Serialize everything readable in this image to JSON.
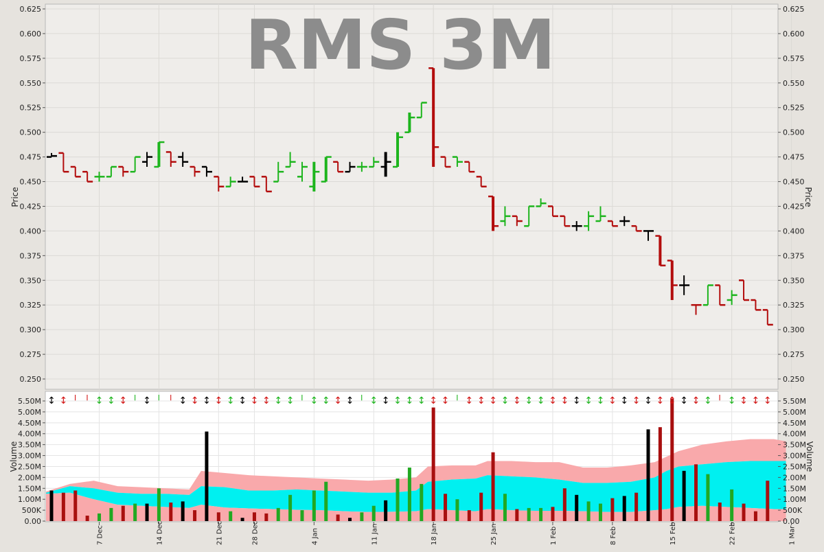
{
  "chart_data": [
    {
      "type": "ohlc",
      "title": "RMS 3M",
      "ylabel": "Price",
      "ylim": [
        0.24,
        0.627
      ],
      "yticks": [
        "0.250",
        "0.275",
        "0.300",
        "0.325",
        "0.350",
        "0.375",
        "0.400",
        "0.425",
        "0.450",
        "0.475",
        "0.500",
        "0.525",
        "0.550",
        "0.575",
        "0.600",
        "0.625"
      ],
      "grid": true,
      "colors": {
        "up": "#1db51d",
        "down": "#b30d0d",
        "flat": "#000000"
      },
      "bars": [
        {
          "o": 0.475,
          "h": 0.479,
          "l": 0.475,
          "c": 0.476,
          "dir": "flat"
        },
        {
          "o": 0.479,
          "h": 0.479,
          "l": 0.46,
          "c": 0.46,
          "dir": "down"
        },
        {
          "o": 0.465,
          "h": 0.465,
          "l": 0.455,
          "c": 0.455,
          "dir": "down"
        },
        {
          "o": 0.46,
          "h": 0.46,
          "l": 0.45,
          "c": 0.45,
          "dir": "down"
        },
        {
          "o": 0.455,
          "h": 0.46,
          "l": 0.45,
          "c": 0.455,
          "dir": "up"
        },
        {
          "o": 0.455,
          "h": 0.465,
          "l": 0.455,
          "c": 0.465,
          "dir": "up"
        },
        {
          "o": 0.465,
          "h": 0.465,
          "l": 0.455,
          "c": 0.46,
          "dir": "down"
        },
        {
          "o": 0.46,
          "h": 0.475,
          "l": 0.46,
          "c": 0.475,
          "dir": "up"
        },
        {
          "o": 0.47,
          "h": 0.48,
          "l": 0.465,
          "c": 0.475,
          "dir": "flat"
        },
        {
          "o": 0.465,
          "h": 0.49,
          "l": 0.465,
          "c": 0.49,
          "dir": "up"
        },
        {
          "o": 0.48,
          "h": 0.48,
          "l": 0.465,
          "c": 0.47,
          "dir": "down"
        },
        {
          "o": 0.475,
          "h": 0.48,
          "l": 0.465,
          "c": 0.47,
          "dir": "flat"
        },
        {
          "o": 0.465,
          "h": 0.465,
          "l": 0.455,
          "c": 0.46,
          "dir": "down"
        },
        {
          "o": 0.465,
          "h": 0.465,
          "l": 0.455,
          "c": 0.46,
          "dir": "flat"
        },
        {
          "o": 0.455,
          "h": 0.455,
          "l": 0.44,
          "c": 0.445,
          "dir": "down"
        },
        {
          "o": 0.445,
          "h": 0.455,
          "l": 0.445,
          "c": 0.45,
          "dir": "up"
        },
        {
          "o": 0.45,
          "h": 0.455,
          "l": 0.45,
          "c": 0.45,
          "dir": "flat"
        },
        {
          "o": 0.455,
          "h": 0.455,
          "l": 0.445,
          "c": 0.445,
          "dir": "down"
        },
        {
          "o": 0.455,
          "h": 0.455,
          "l": 0.44,
          "c": 0.44,
          "dir": "down"
        },
        {
          "o": 0.45,
          "h": 0.47,
          "l": 0.45,
          "c": 0.46,
          "dir": "up"
        },
        {
          "o": 0.465,
          "h": 0.48,
          "l": 0.465,
          "c": 0.47,
          "dir": "up"
        },
        {
          "o": 0.455,
          "h": 0.47,
          "l": 0.45,
          "c": 0.465,
          "dir": "up"
        },
        {
          "o": 0.445,
          "h": 0.47,
          "l": 0.44,
          "c": 0.46,
          "dir": "up"
        },
        {
          "o": 0.45,
          "h": 0.475,
          "l": 0.45,
          "c": 0.475,
          "dir": "up"
        },
        {
          "o": 0.47,
          "h": 0.47,
          "l": 0.46,
          "c": 0.46,
          "dir": "down"
        },
        {
          "o": 0.46,
          "h": 0.47,
          "l": 0.46,
          "c": 0.465,
          "dir": "flat"
        },
        {
          "o": 0.465,
          "h": 0.47,
          "l": 0.46,
          "c": 0.465,
          "dir": "up"
        },
        {
          "o": 0.465,
          "h": 0.475,
          "l": 0.465,
          "c": 0.47,
          "dir": "up"
        },
        {
          "o": 0.465,
          "h": 0.48,
          "l": 0.455,
          "c": 0.47,
          "dir": "flat"
        },
        {
          "o": 0.465,
          "h": 0.5,
          "l": 0.465,
          "c": 0.495,
          "dir": "up"
        },
        {
          "o": 0.5,
          "h": 0.52,
          "l": 0.5,
          "c": 0.515,
          "dir": "up"
        },
        {
          "o": 0.515,
          "h": 0.53,
          "l": 0.515,
          "c": 0.53,
          "dir": "up"
        },
        {
          "o": 0.565,
          "h": 0.565,
          "l": 0.465,
          "c": 0.485,
          "dir": "down"
        },
        {
          "o": 0.475,
          "h": 0.475,
          "l": 0.465,
          "c": 0.465,
          "dir": "down"
        },
        {
          "o": 0.475,
          "h": 0.475,
          "l": 0.465,
          "c": 0.47,
          "dir": "up"
        },
        {
          "o": 0.47,
          "h": 0.47,
          "l": 0.46,
          "c": 0.46,
          "dir": "down"
        },
        {
          "o": 0.455,
          "h": 0.455,
          "l": 0.445,
          "c": 0.445,
          "dir": "down"
        },
        {
          "o": 0.435,
          "h": 0.435,
          "l": 0.4,
          "c": 0.405,
          "dir": "down"
        },
        {
          "o": 0.41,
          "h": 0.425,
          "l": 0.405,
          "c": 0.415,
          "dir": "up"
        },
        {
          "o": 0.415,
          "h": 0.415,
          "l": 0.405,
          "c": 0.41,
          "dir": "down"
        },
        {
          "o": 0.405,
          "h": 0.425,
          "l": 0.405,
          "c": 0.425,
          "dir": "up"
        },
        {
          "o": 0.425,
          "h": 0.433,
          "l": 0.425,
          "c": 0.428,
          "dir": "up"
        },
        {
          "o": 0.425,
          "h": 0.425,
          "l": 0.415,
          "c": 0.415,
          "dir": "down"
        },
        {
          "o": 0.415,
          "h": 0.415,
          "l": 0.405,
          "c": 0.405,
          "dir": "down"
        },
        {
          "o": 0.405,
          "h": 0.41,
          "l": 0.4,
          "c": 0.405,
          "dir": "flat"
        },
        {
          "o": 0.405,
          "h": 0.42,
          "l": 0.4,
          "c": 0.415,
          "dir": "up"
        },
        {
          "o": 0.41,
          "h": 0.425,
          "l": 0.41,
          "c": 0.415,
          "dir": "up"
        },
        {
          "o": 0.41,
          "h": 0.41,
          "l": 0.405,
          "c": 0.405,
          "dir": "down"
        },
        {
          "o": 0.41,
          "h": 0.415,
          "l": 0.405,
          "c": 0.41,
          "dir": "flat"
        },
        {
          "o": 0.405,
          "h": 0.405,
          "l": 0.4,
          "c": 0.4,
          "dir": "down"
        },
        {
          "o": 0.4,
          "h": 0.4,
          "l": 0.39,
          "c": 0.4,
          "dir": "flat"
        },
        {
          "o": 0.395,
          "h": 0.395,
          "l": 0.365,
          "c": 0.365,
          "dir": "down"
        },
        {
          "o": 0.37,
          "h": 0.37,
          "l": 0.33,
          "c": 0.345,
          "dir": "down"
        },
        {
          "o": 0.345,
          "h": 0.355,
          "l": 0.335,
          "c": 0.345,
          "dir": "flat"
        },
        {
          "o": 0.325,
          "h": 0.325,
          "l": 0.315,
          "c": 0.325,
          "dir": "down"
        },
        {
          "o": 0.325,
          "h": 0.345,
          "l": 0.325,
          "c": 0.345,
          "dir": "up"
        },
        {
          "o": 0.345,
          "h": 0.345,
          "l": 0.325,
          "c": 0.325,
          "dir": "down"
        },
        {
          "o": 0.33,
          "h": 0.34,
          "l": 0.325,
          "c": 0.335,
          "dir": "up"
        },
        {
          "o": 0.35,
          "h": 0.35,
          "l": 0.33,
          "c": 0.33,
          "dir": "down"
        },
        {
          "o": 0.33,
          "h": 0.33,
          "l": 0.32,
          "c": 0.32,
          "dir": "down"
        },
        {
          "o": 0.32,
          "h": 0.32,
          "l": 0.305,
          "c": 0.305,
          "dir": "down"
        }
      ]
    },
    {
      "type": "bar",
      "ylabel": "Volume",
      "ylim": [
        0,
        5.75
      ],
      "yticks": [
        "0.00",
        "500K",
        "1.00M",
        "1.50M",
        "2.00M",
        "2.50M",
        "3.00M",
        "3.50M",
        "4.00M",
        "4.50M",
        "5.00M",
        "5.50M"
      ],
      "x_tick_labels": [
        "7 Dec",
        "14 Dec",
        "21 Dec",
        "28 Dec",
        "4 Jan",
        "11 Jan",
        "18 Jan",
        "25 Jan",
        "1 Feb",
        "8 Feb",
        "15 Feb",
        "22 Feb",
        "1 Mar"
      ],
      "x_tick_days": [
        4,
        9,
        14,
        17,
        22,
        27,
        32,
        37,
        42,
        47,
        52,
        57,
        62
      ],
      "grid": true,
      "volumes_millions": [
        1.4,
        1.3,
        1.4,
        0.25,
        0.35,
        0.6,
        0.7,
        0.8,
        0.8,
        1.5,
        0.85,
        0.9,
        0.5,
        4.1,
        0.4,
        0.45,
        0.15,
        0.4,
        0.35,
        0.6,
        1.2,
        0.5,
        1.4,
        1.8,
        0.3,
        0.15,
        0.4,
        0.7,
        0.95,
        1.95,
        2.45,
        1.7,
        5.2,
        1.25,
        1.0,
        0.5,
        1.3,
        3.15,
        1.25,
        0.55,
        0.6,
        0.6,
        0.65,
        1.5,
        1.2,
        0.9,
        0.8,
        1.05,
        1.15,
        1.3,
        4.2,
        4.3,
        5.6,
        2.3,
        2.6,
        2.15,
        0.85,
        1.45,
        0.8,
        0.45,
        1.85
      ],
      "band_days": [
        0,
        2,
        4,
        6,
        8,
        10,
        12,
        13,
        15,
        17,
        19,
        21,
        23,
        25,
        27,
        29,
        31,
        32,
        34,
        36,
        37,
        39,
        41,
        43,
        45,
        47,
        49,
        51,
        52,
        53,
        55,
        57,
        59,
        61,
        62
      ],
      "band_pink_low": [
        0.0,
        0.0,
        0.0,
        0.0,
        0.0,
        0.0,
        0.0,
        0.0,
        0.0,
        0.0,
        0.0,
        0.0,
        0.0,
        0.0,
        0.0,
        0.0,
        0.0,
        0.0,
        0.0,
        0.0,
        0.0,
        0.0,
        0.0,
        0.0,
        0.0,
        0.0,
        0.0,
        0.0,
        0.0,
        0.0,
        0.0,
        0.0,
        0.0,
        0.0,
        0.0
      ],
      "band_pink_high": [
        1.25,
        1.3,
        1.0,
        0.75,
        0.7,
        0.65,
        0.6,
        0.75,
        0.62,
        0.58,
        0.55,
        0.52,
        0.5,
        0.45,
        0.42,
        0.43,
        0.45,
        0.55,
        0.5,
        0.45,
        0.55,
        0.5,
        0.47,
        0.47,
        0.45,
        0.42,
        0.42,
        0.5,
        0.55,
        0.65,
        0.7,
        0.65,
        0.6,
        0.55,
        0.55
      ],
      "band_cyan_high": [
        1.3,
        1.6,
        1.5,
        1.3,
        1.25,
        1.25,
        1.2,
        1.6,
        1.55,
        1.4,
        1.4,
        1.45,
        1.4,
        1.35,
        1.3,
        1.3,
        1.4,
        1.8,
        1.9,
        1.95,
        2.1,
        2.05,
        2.0,
        1.9,
        1.75,
        1.75,
        1.8,
        2.0,
        2.3,
        2.5,
        2.6,
        2.7,
        2.75,
        2.75,
        2.75
      ],
      "band_top": [
        1.35,
        1.7,
        1.85,
        1.6,
        1.55,
        1.5,
        1.45,
        2.3,
        2.2,
        2.1,
        2.05,
        2.0,
        1.95,
        1.9,
        1.85,
        1.9,
        2.0,
        2.5,
        2.55,
        2.55,
        2.75,
        2.75,
        2.7,
        2.7,
        2.45,
        2.45,
        2.55,
        2.7,
        2.95,
        3.2,
        3.5,
        3.65,
        3.75,
        3.75,
        3.65
      ],
      "band_colors": {
        "pink": "#f9a9ab",
        "cyan_light": "#7cf6f6",
        "cyan": "#00f0f0"
      },
      "arrow_glyphs": [
        "↕",
        "↕",
        "╵",
        "╵",
        "↕",
        "↕",
        "↕",
        "╵",
        "↕",
        "╵",
        "╵",
        "↕",
        "↕",
        "↕",
        "↕",
        "↕",
        "↕",
        "↕",
        "↕",
        "↕",
        "↕",
        "╵",
        "↕",
        "↕",
        "↕",
        "↕",
        "╵",
        "↕",
        "↕",
        "↕",
        "↕",
        "↕",
        "↕",
        "↕",
        "╵",
        "↕",
        "↕",
        "↕",
        "↕",
        "↕",
        "↕",
        "↕",
        "↕",
        "↕",
        "↕",
        "↕",
        "↕",
        "↕",
        "↕",
        "↕",
        "↕",
        "↕",
        "↕",
        "↕",
        "↕",
        "↕",
        "╵",
        "↕",
        "↕",
        "↕",
        "↕"
      ]
    }
  ]
}
